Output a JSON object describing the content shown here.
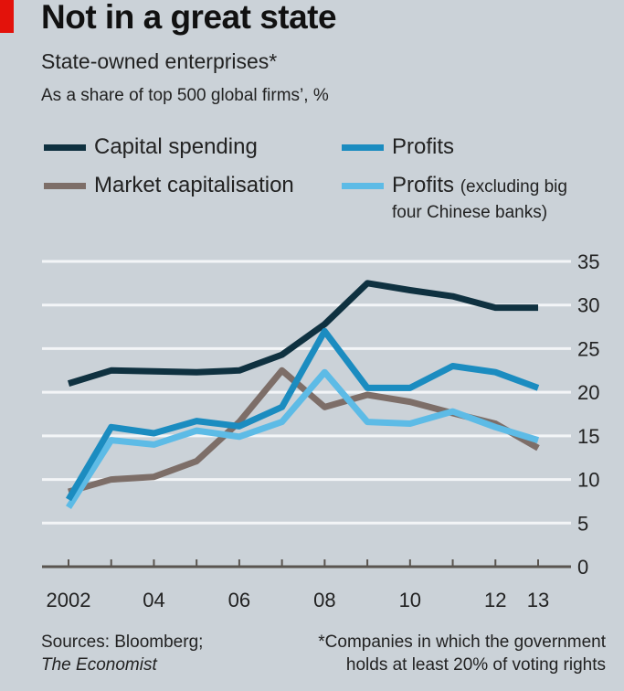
{
  "header": {
    "title": "Not in a great state",
    "subtitle": "State-owned enterprises*",
    "subtitle2": "As a share of top 500 global firms’, %"
  },
  "colors": {
    "accent_red": "#e3120b",
    "capital_spending": "#0f3140",
    "market_cap": "#7d6e68",
    "profits": "#1b8cc0",
    "profits_excl": "#5dbbe6",
    "grid": "#f3f5f7",
    "axis": "#5a5550"
  },
  "legend": [
    {
      "label": "Capital spending",
      "series": "capital_spending"
    },
    {
      "label": "Profits",
      "series": "profits"
    },
    {
      "label": "Market capitalisation",
      "series": "market_cap"
    },
    {
      "label": "Profits",
      "label_small": "(excluding big\nfour Chinese banks)",
      "series": "profits_excl"
    }
  ],
  "footer": {
    "sources_line1": "Sources: Bloomberg;",
    "sources_line2": "The Economist",
    "footnote_line1": "*Companies in which the government",
    "footnote_line2": "holds at least 20% of voting rights"
  },
  "chart_data": {
    "type": "line",
    "title": "Not in a great state",
    "subtitle": "State-owned enterprises* — As a share of top 500 global firms’, %",
    "xlabel": "",
    "ylabel": "%",
    "x": [
      2002,
      2003,
      2004,
      2005,
      2006,
      2007,
      2008,
      2009,
      2010,
      2011,
      2012,
      2013
    ],
    "xtick_labels": [
      {
        "x": 2002,
        "label": "2002"
      },
      {
        "x": 2004,
        "label": "04"
      },
      {
        "x": 2006,
        "label": "06"
      },
      {
        "x": 2008,
        "label": "08"
      },
      {
        "x": 2010,
        "label": "10"
      },
      {
        "x": 2012,
        "label": "12"
      },
      {
        "x": 2013,
        "label": "13"
      }
    ],
    "yticks": [
      0,
      5,
      10,
      15,
      20,
      25,
      30,
      35
    ],
    "ylim": [
      0,
      35
    ],
    "xlim": [
      2002,
      2013
    ],
    "grid": true,
    "y_axis_side": "right",
    "legend_position": "top",
    "series": [
      {
        "key": "capital_spending",
        "name": "Capital spending",
        "values": [
          21.0,
          22.5,
          22.4,
          22.3,
          22.5,
          24.3,
          27.8,
          32.5,
          31.7,
          31.0,
          29.7,
          29.7
        ]
      },
      {
        "key": "market_cap",
        "name": "Market capitalisation",
        "values": [
          8.6,
          10.0,
          10.3,
          12.1,
          16.6,
          22.5,
          18.3,
          19.7,
          18.9,
          17.6,
          16.4,
          13.6
        ]
      },
      {
        "key": "profits_excl",
        "name": "Profits (excluding big four Chinese banks)",
        "values": [
          6.8,
          14.5,
          14.0,
          15.6,
          14.9,
          16.6,
          22.3,
          16.6,
          16.4,
          17.8,
          16.0,
          14.5
        ]
      },
      {
        "key": "profits",
        "name": "Profits",
        "values": [
          7.7,
          16.0,
          15.3,
          16.7,
          16.1,
          18.3,
          27.0,
          20.5,
          20.5,
          23.0,
          22.3,
          20.5
        ]
      }
    ]
  }
}
